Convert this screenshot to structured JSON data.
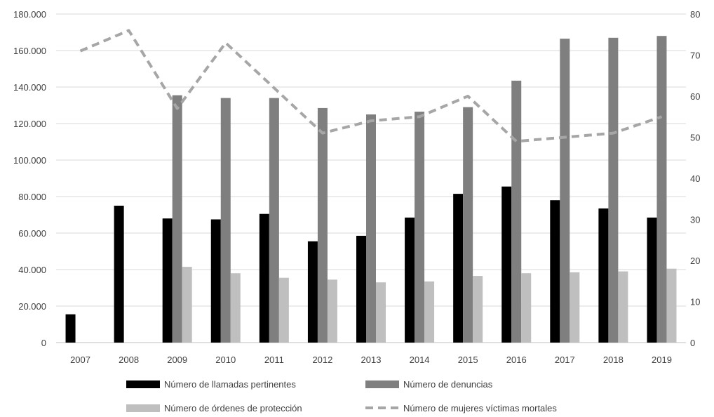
{
  "chart_data": {
    "type": "bar",
    "categories": [
      "2007",
      "2008",
      "2009",
      "2010",
      "2011",
      "2012",
      "2013",
      "2014",
      "2015",
      "2016",
      "2017",
      "2018",
      "2019"
    ],
    "series": [
      {
        "name": "Número de llamadas pertinentes",
        "type": "bar",
        "axis": "left",
        "color": "#000000",
        "values": [
          15500,
          75000,
          68000,
          67500,
          70500,
          55500,
          58500,
          68500,
          81500,
          85500,
          78000,
          73500,
          68500
        ]
      },
      {
        "name": "Número de denuncias",
        "type": "bar",
        "axis": "left",
        "color": "#7f7f7f",
        "values": [
          null,
          null,
          135500,
          134000,
          134000,
          128500,
          125000,
          126500,
          129000,
          143500,
          166500,
          167000,
          168000
        ]
      },
      {
        "name": "Número de órdenes de protección",
        "type": "bar",
        "axis": "left",
        "color": "#bfbfbf",
        "values": [
          null,
          null,
          41500,
          38000,
          35500,
          34500,
          33000,
          33500,
          36500,
          38000,
          38500,
          39000,
          40500
        ]
      },
      {
        "name": "Número de mujeres víctimas mortales",
        "type": "line",
        "style": "dashed",
        "axis": "right",
        "color": "#a6a6a6",
        "values": [
          71,
          76,
          57,
          73,
          62,
          51,
          54,
          55,
          60,
          49,
          50,
          51,
          55
        ]
      }
    ],
    "y_left": {
      "min": 0,
      "max": 180000,
      "step": 20000,
      "tick_labels": [
        "0",
        "20.000",
        "40.000",
        "60.000",
        "80.000",
        "100.000",
        "120.000",
        "140.000",
        "160.000",
        "180.000"
      ]
    },
    "y_right": {
      "min": 0,
      "max": 80,
      "step": 10,
      "tick_labels": [
        "0",
        "10",
        "20",
        "30",
        "40",
        "50",
        "60",
        "70",
        "80"
      ]
    },
    "title": "",
    "xlabel": "",
    "ylabel": "",
    "grid": true,
    "legend_position": "bottom"
  }
}
